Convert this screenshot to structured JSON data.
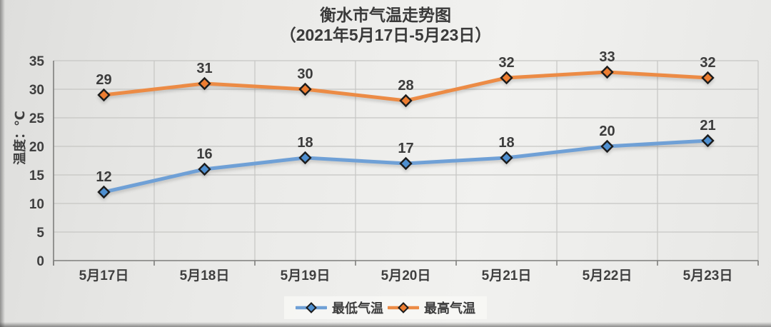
{
  "title": "衡水市气温走势图",
  "subtitle": "（2021年5月17日-5月23日）",
  "chart_data": {
    "type": "line",
    "categories": [
      "5月17日",
      "5月18日",
      "5月19日",
      "5月20日",
      "5月21日",
      "5月22日",
      "5月23日"
    ],
    "series": [
      {
        "id": "min-temp",
        "name": "最低气温",
        "values": [
          12,
          16,
          18,
          17,
          18,
          20,
          21
        ],
        "line_color": "#6FA0D6",
        "marker_color": "#4E8FD0",
        "marker_outline": "#1c1c1c"
      },
      {
        "id": "max-temp",
        "name": "最高气温",
        "values": [
          29,
          31,
          30,
          28,
          32,
          33,
          32
        ],
        "line_color": "#EC8B45",
        "marker_color": "#ED7D31",
        "marker_outline": "#1c1c1c"
      }
    ],
    "ylabel": "温度：℃",
    "xlabel": "",
    "ylim": [
      0,
      35
    ],
    "ytick_step": 5,
    "yticks": [
      "0",
      "5",
      "10",
      "15",
      "20",
      "25",
      "30",
      "35"
    ],
    "grid": true,
    "data_labels": true,
    "legend_position": "bottom"
  },
  "colors": {
    "grid": "#c6c6c4",
    "axis": "#7e7e7c",
    "text": "#3f3f3f",
    "background": "#e9e9e7"
  }
}
